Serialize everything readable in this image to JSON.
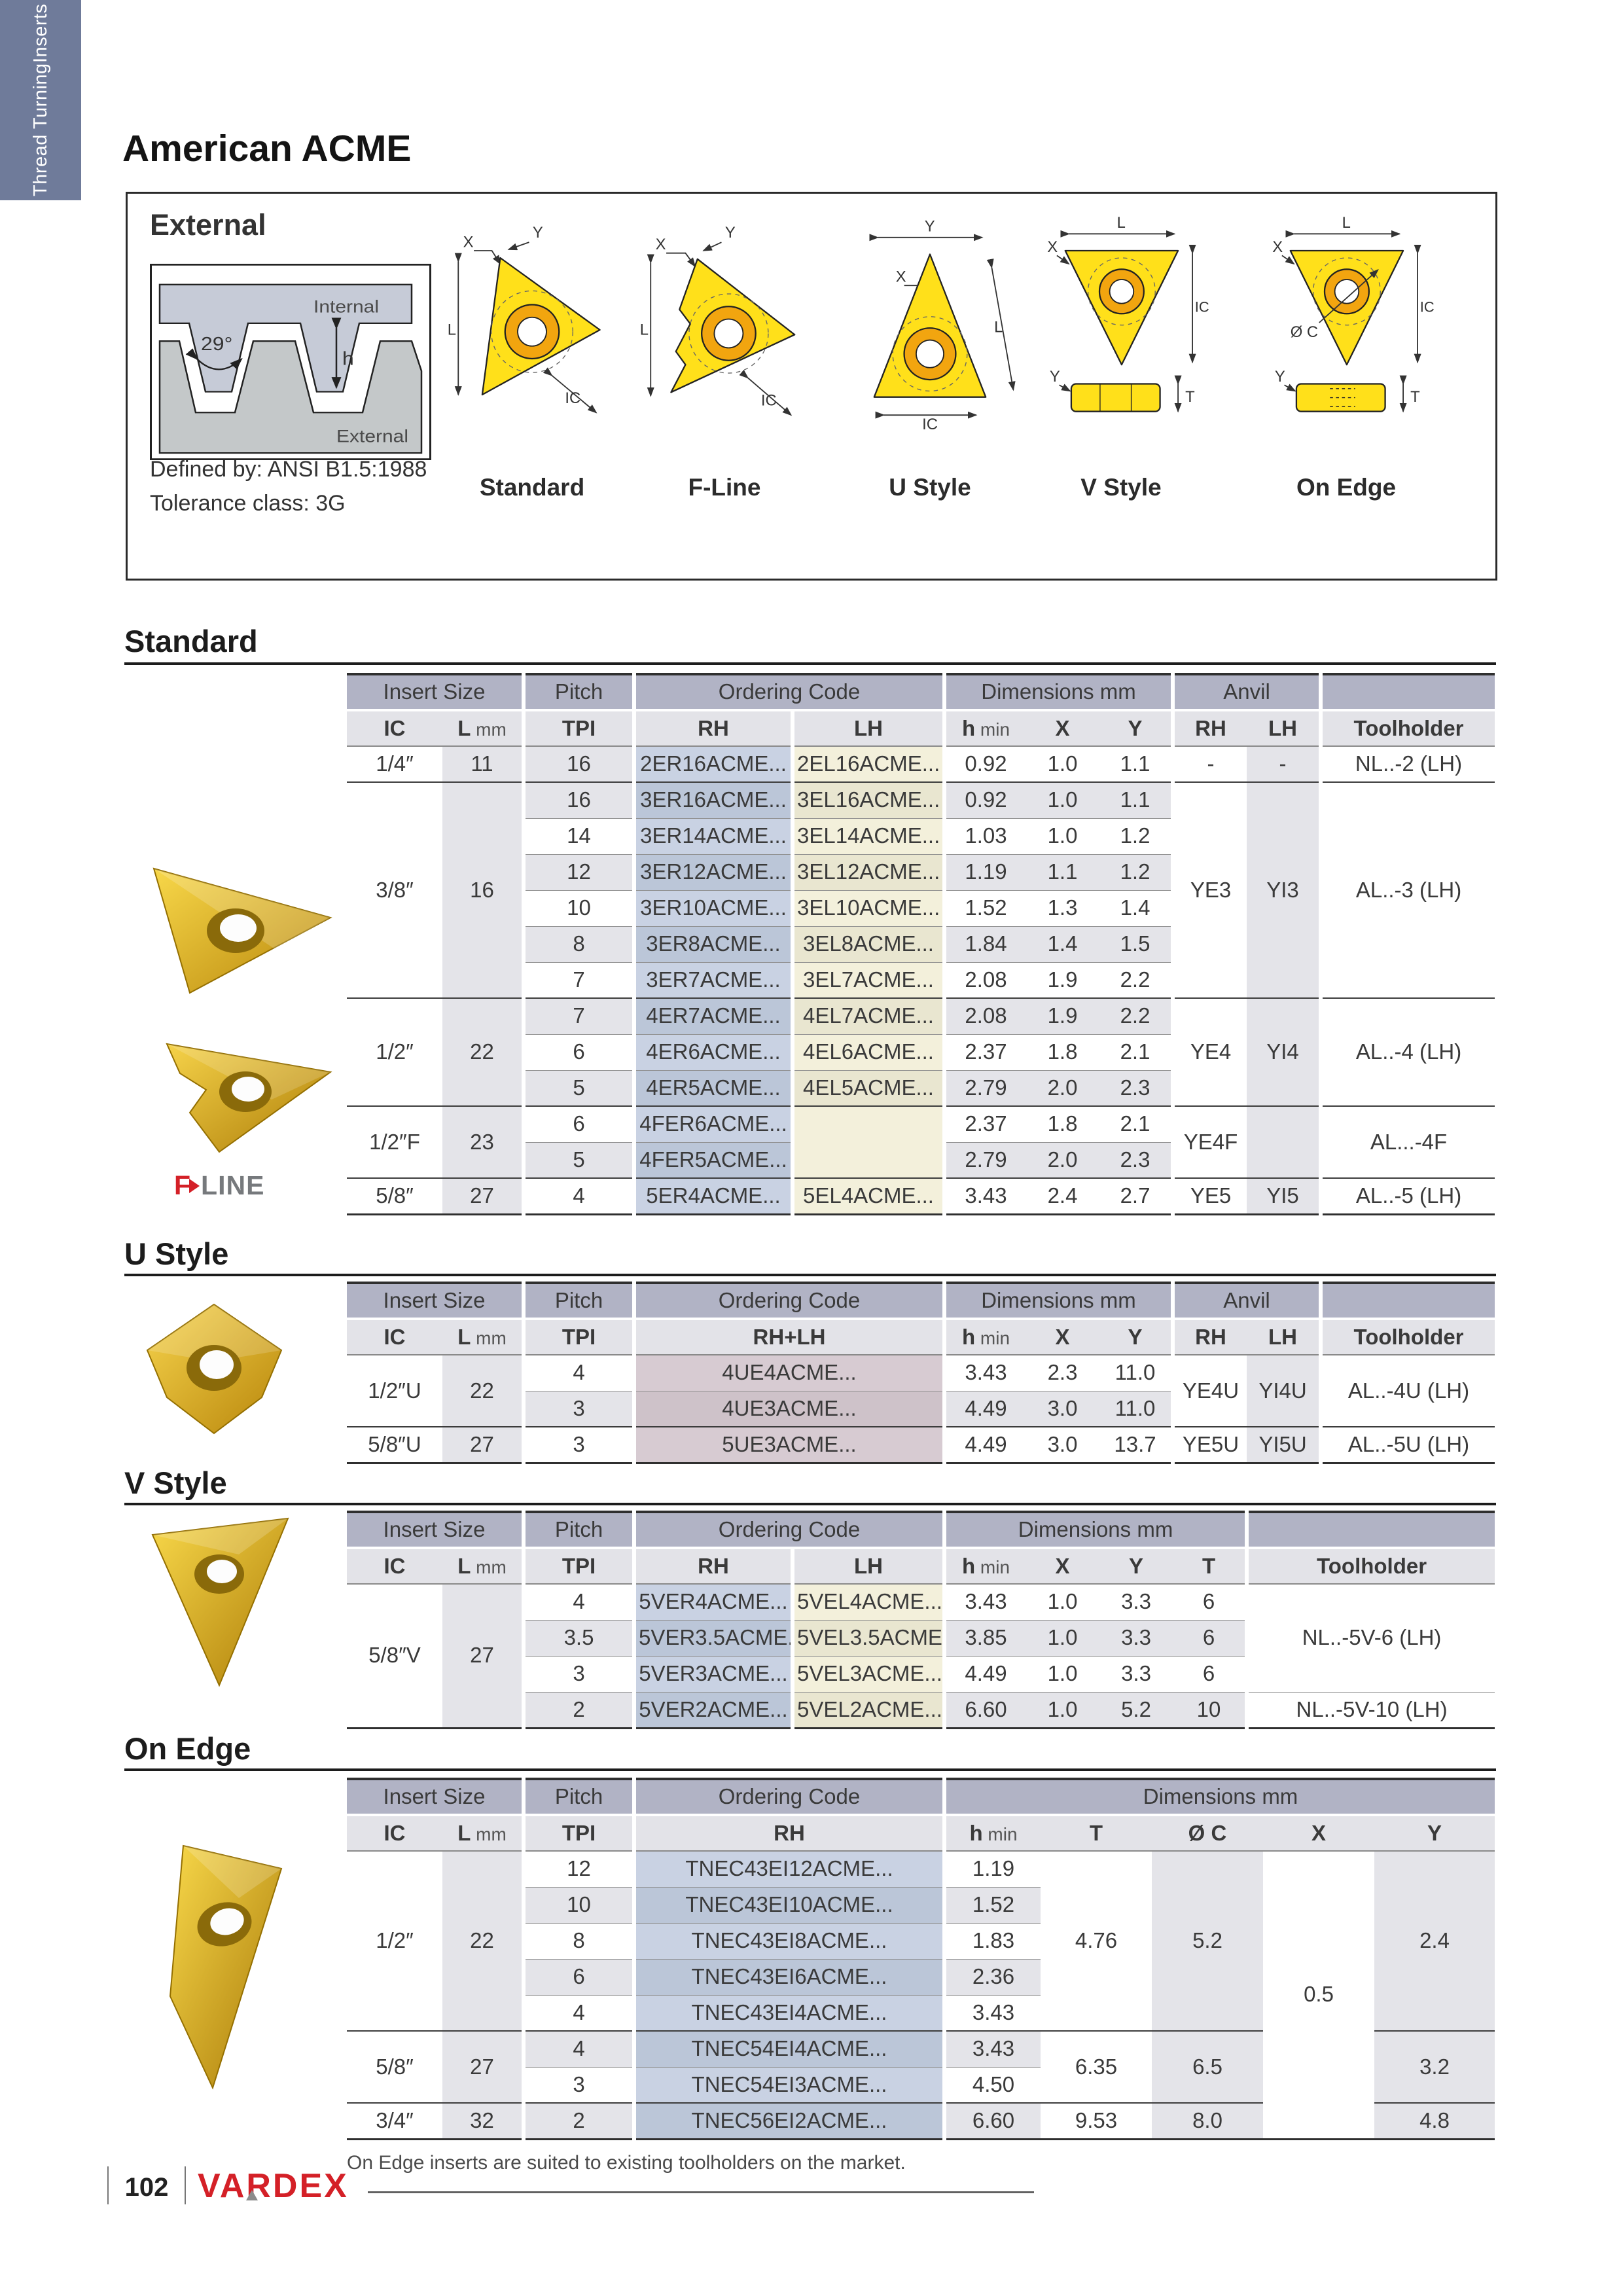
{
  "page": {
    "sidebar_line1": "Thread Turning",
    "sidebar_line2": "Inserts",
    "title": "American ACME",
    "number": "102",
    "brand": "VARDEX",
    "footnote": "On Edge inserts are suited to existing toolholders on the market."
  },
  "external": {
    "heading": "External",
    "defined_by": "Defined by: ANSI B1.5:1988",
    "tolerance": "Tolerance class: 3G",
    "profile": {
      "angle": "29°",
      "internal_label": "Internal",
      "external_label": "External",
      "h_label": "h"
    },
    "figures": [
      "Standard",
      "F-Line",
      "U Style",
      "V Style",
      "On Edge"
    ]
  },
  "labels": {
    "insert_size": "Insert Size",
    "pitch": "Pitch",
    "ordering_code": "Ordering Code",
    "dimensions": "Dimensions mm",
    "anvil": "Anvil",
    "ic": "IC",
    "l": "L",
    "mm": "mm",
    "tpi": "TPI",
    "rh": "RH",
    "lh": "LH",
    "rhlh": "RH+LH",
    "h": "h",
    "min": "min",
    "x": "X",
    "y": "Y",
    "t": "T",
    "oc": "Ø C",
    "toolholder": "Toolholder",
    "fline_f": "F",
    "fline_line": "LINE"
  },
  "standard": {
    "heading": "Standard",
    "groups": [
      {
        "ic": "1/4″",
        "l": "11",
        "anvil_rh": "-",
        "anvil_lh": "-",
        "toolholder": "NL..-2 (LH)",
        "rows": [
          {
            "tpi": "16",
            "rh": "2ER16ACME...",
            "lh": "2EL16ACME...",
            "h": "0.92",
            "x": "1.0",
            "y": "1.1"
          }
        ]
      },
      {
        "ic": "3/8″",
        "l": "16",
        "anvil_rh": "YE3",
        "anvil_lh": "YI3",
        "toolholder": "AL..-3 (LH)",
        "rows": [
          {
            "tpi": "16",
            "rh": "3ER16ACME...",
            "lh": "3EL16ACME...",
            "h": "0.92",
            "x": "1.0",
            "y": "1.1"
          },
          {
            "tpi": "14",
            "rh": "3ER14ACME...",
            "lh": "3EL14ACME...",
            "h": "1.03",
            "x": "1.0",
            "y": "1.2"
          },
          {
            "tpi": "12",
            "rh": "3ER12ACME...",
            "lh": "3EL12ACME...",
            "h": "1.19",
            "x": "1.1",
            "y": "1.2"
          },
          {
            "tpi": "10",
            "rh": "3ER10ACME...",
            "lh": "3EL10ACME...",
            "h": "1.52",
            "x": "1.3",
            "y": "1.4"
          },
          {
            "tpi": "8",
            "rh": "3ER8ACME...",
            "lh": "3EL8ACME...",
            "h": "1.84",
            "x": "1.4",
            "y": "1.5"
          },
          {
            "tpi": "7",
            "rh": "3ER7ACME...",
            "lh": "3EL7ACME...",
            "h": "2.08",
            "x": "1.9",
            "y": "2.2"
          }
        ]
      },
      {
        "ic": "1/2″",
        "l": "22",
        "anvil_rh": "YE4",
        "anvil_lh": "YI4",
        "toolholder": "AL..-4 (LH)",
        "rows": [
          {
            "tpi": "7",
            "rh": "4ER7ACME...",
            "lh": "4EL7ACME...",
            "h": "2.08",
            "x": "1.9",
            "y": "2.2"
          },
          {
            "tpi": "6",
            "rh": "4ER6ACME...",
            "lh": "4EL6ACME...",
            "h": "2.37",
            "x": "1.8",
            "y": "2.1"
          },
          {
            "tpi": "5",
            "rh": "4ER5ACME...",
            "lh": "4EL5ACME...",
            "h": "2.79",
            "x": "2.0",
            "y": "2.3"
          }
        ]
      },
      {
        "ic": "1/2″F",
        "l": "23",
        "anvil_rh": "YE4F",
        "anvil_lh": "",
        "toolholder": "AL...-4F",
        "rows": [
          {
            "tpi": "6",
            "rh": "4FER6ACME...",
            "lh": "",
            "h": "2.37",
            "x": "1.8",
            "y": "2.1"
          },
          {
            "tpi": "5",
            "rh": "4FER5ACME...",
            "lh": "",
            "h": "2.79",
            "x": "2.0",
            "y": "2.3"
          }
        ]
      },
      {
        "ic": "5/8″",
        "l": "27",
        "anvil_rh": "YE5",
        "anvil_lh": "YI5",
        "toolholder": "AL..-5 (LH)",
        "rows": [
          {
            "tpi": "4",
            "rh": "5ER4ACME...",
            "lh": "5EL4ACME...",
            "h": "3.43",
            "x": "2.4",
            "y": "2.7"
          }
        ]
      }
    ]
  },
  "ustyle": {
    "heading": "U Style",
    "groups": [
      {
        "ic": "1/2″U",
        "l": "22",
        "anvil_rh": "YE4U",
        "anvil_lh": "YI4U",
        "toolholder": "AL..-4U (LH)",
        "rows": [
          {
            "tpi": "4",
            "rhlh": "4UE4ACME...",
            "h": "3.43",
            "x": "2.3",
            "y": "11.0"
          },
          {
            "tpi": "3",
            "rhlh": "4UE3ACME...",
            "h": "4.49",
            "x": "3.0",
            "y": "11.0"
          }
        ]
      },
      {
        "ic": "5/8″U",
        "l": "27",
        "anvil_rh": "YE5U",
        "anvil_lh": "YI5U",
        "toolholder": "AL..-5U (LH)",
        "rows": [
          {
            "tpi": "3",
            "rhlh": "5UE3ACME...",
            "h": "4.49",
            "x": "3.0",
            "y": "13.7"
          }
        ]
      }
    ]
  },
  "vstyle": {
    "heading": "V Style",
    "groups": [
      {
        "ic": "5/8″V",
        "l": "27",
        "rows": [
          {
            "tpi": "4",
            "rh": "5VER4ACME...",
            "lh": "5VEL4ACME...",
            "h": "3.43",
            "x": "1.0",
            "y": "3.3",
            "t": "6"
          },
          {
            "tpi": "3.5",
            "rh": "5VER3.5ACME...",
            "lh": "5VEL3.5ACME...",
            "h": "3.85",
            "x": "1.0",
            "y": "3.3",
            "t": "6"
          },
          {
            "tpi": "3",
            "rh": "5VER3ACME...",
            "lh": "5VEL3ACME...",
            "h": "4.49",
            "x": "1.0",
            "y": "3.3",
            "t": "6"
          },
          {
            "tpi": "2",
            "rh": "5VER2ACME...",
            "lh": "5VEL2ACME...",
            "h": "6.60",
            "x": "1.0",
            "y": "5.2",
            "t": "10"
          }
        ]
      }
    ],
    "toolholders": [
      {
        "label": "NL..-5V-6 (LH)",
        "rows": 3
      },
      {
        "label": "NL..-5V-10 (LH)",
        "rows": 1
      }
    ]
  },
  "onedge": {
    "heading": "On Edge",
    "x_all": "0.5",
    "groups": [
      {
        "ic": "1/2″",
        "l": "22",
        "t": "4.76",
        "oc": "5.2",
        "y": "2.4",
        "rows": [
          {
            "tpi": "12",
            "rh": "TNEC43EI12ACME...",
            "h": "1.19"
          },
          {
            "tpi": "10",
            "rh": "TNEC43EI10ACME...",
            "h": "1.52"
          },
          {
            "tpi": "8",
            "rh": "TNEC43EI8ACME...",
            "h": "1.83"
          },
          {
            "tpi": "6",
            "rh": "TNEC43EI6ACME...",
            "h": "2.36"
          },
          {
            "tpi": "4",
            "rh": "TNEC43EI4ACME...",
            "h": "3.43"
          }
        ]
      },
      {
        "ic": "5/8″",
        "l": "27",
        "t": "6.35",
        "oc": "6.5",
        "y": "3.2",
        "rows": [
          {
            "tpi": "4",
            "rh": "TNEC54EI4ACME...",
            "h": "3.43"
          },
          {
            "tpi": "3",
            "rh": "TNEC54EI3ACME...",
            "h": "4.50"
          }
        ]
      },
      {
        "ic": "3/4″",
        "l": "32",
        "t": "9.53",
        "oc": "8.0",
        "y": "4.8",
        "rows": [
          {
            "tpi": "2",
            "rh": "TNEC56EI2ACME...",
            "h": "6.60"
          }
        ]
      }
    ]
  }
}
